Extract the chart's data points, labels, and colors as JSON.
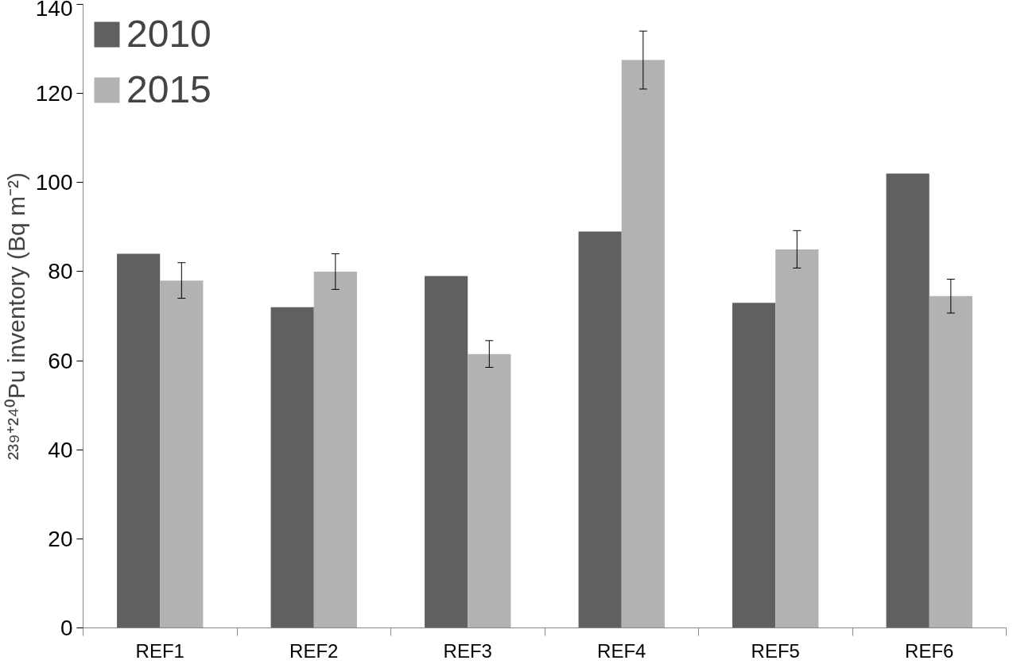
{
  "chart_data": {
    "type": "bar",
    "ylabel": "²³⁹⁺²⁴⁰Pu inventory (Bq m⁻²)",
    "categories": [
      "REF1",
      "REF2",
      "REF3",
      "REF4",
      "REF5",
      "REF6"
    ],
    "series": [
      {
        "name": "2010",
        "color": "#606060",
        "values": [
          84,
          72,
          79,
          89,
          73,
          102
        ]
      },
      {
        "name": "2015",
        "color": "#b2b2b2",
        "values": [
          78,
          80,
          61.5,
          127.5,
          85,
          74.5
        ],
        "errors": [
          4,
          4,
          3,
          6.5,
          4.2,
          3.8
        ]
      }
    ],
    "ylim": [
      0,
      140
    ],
    "yticks": [
      0,
      20,
      40,
      60,
      80,
      100,
      120,
      140
    ],
    "grid": false,
    "legend": "top left"
  }
}
